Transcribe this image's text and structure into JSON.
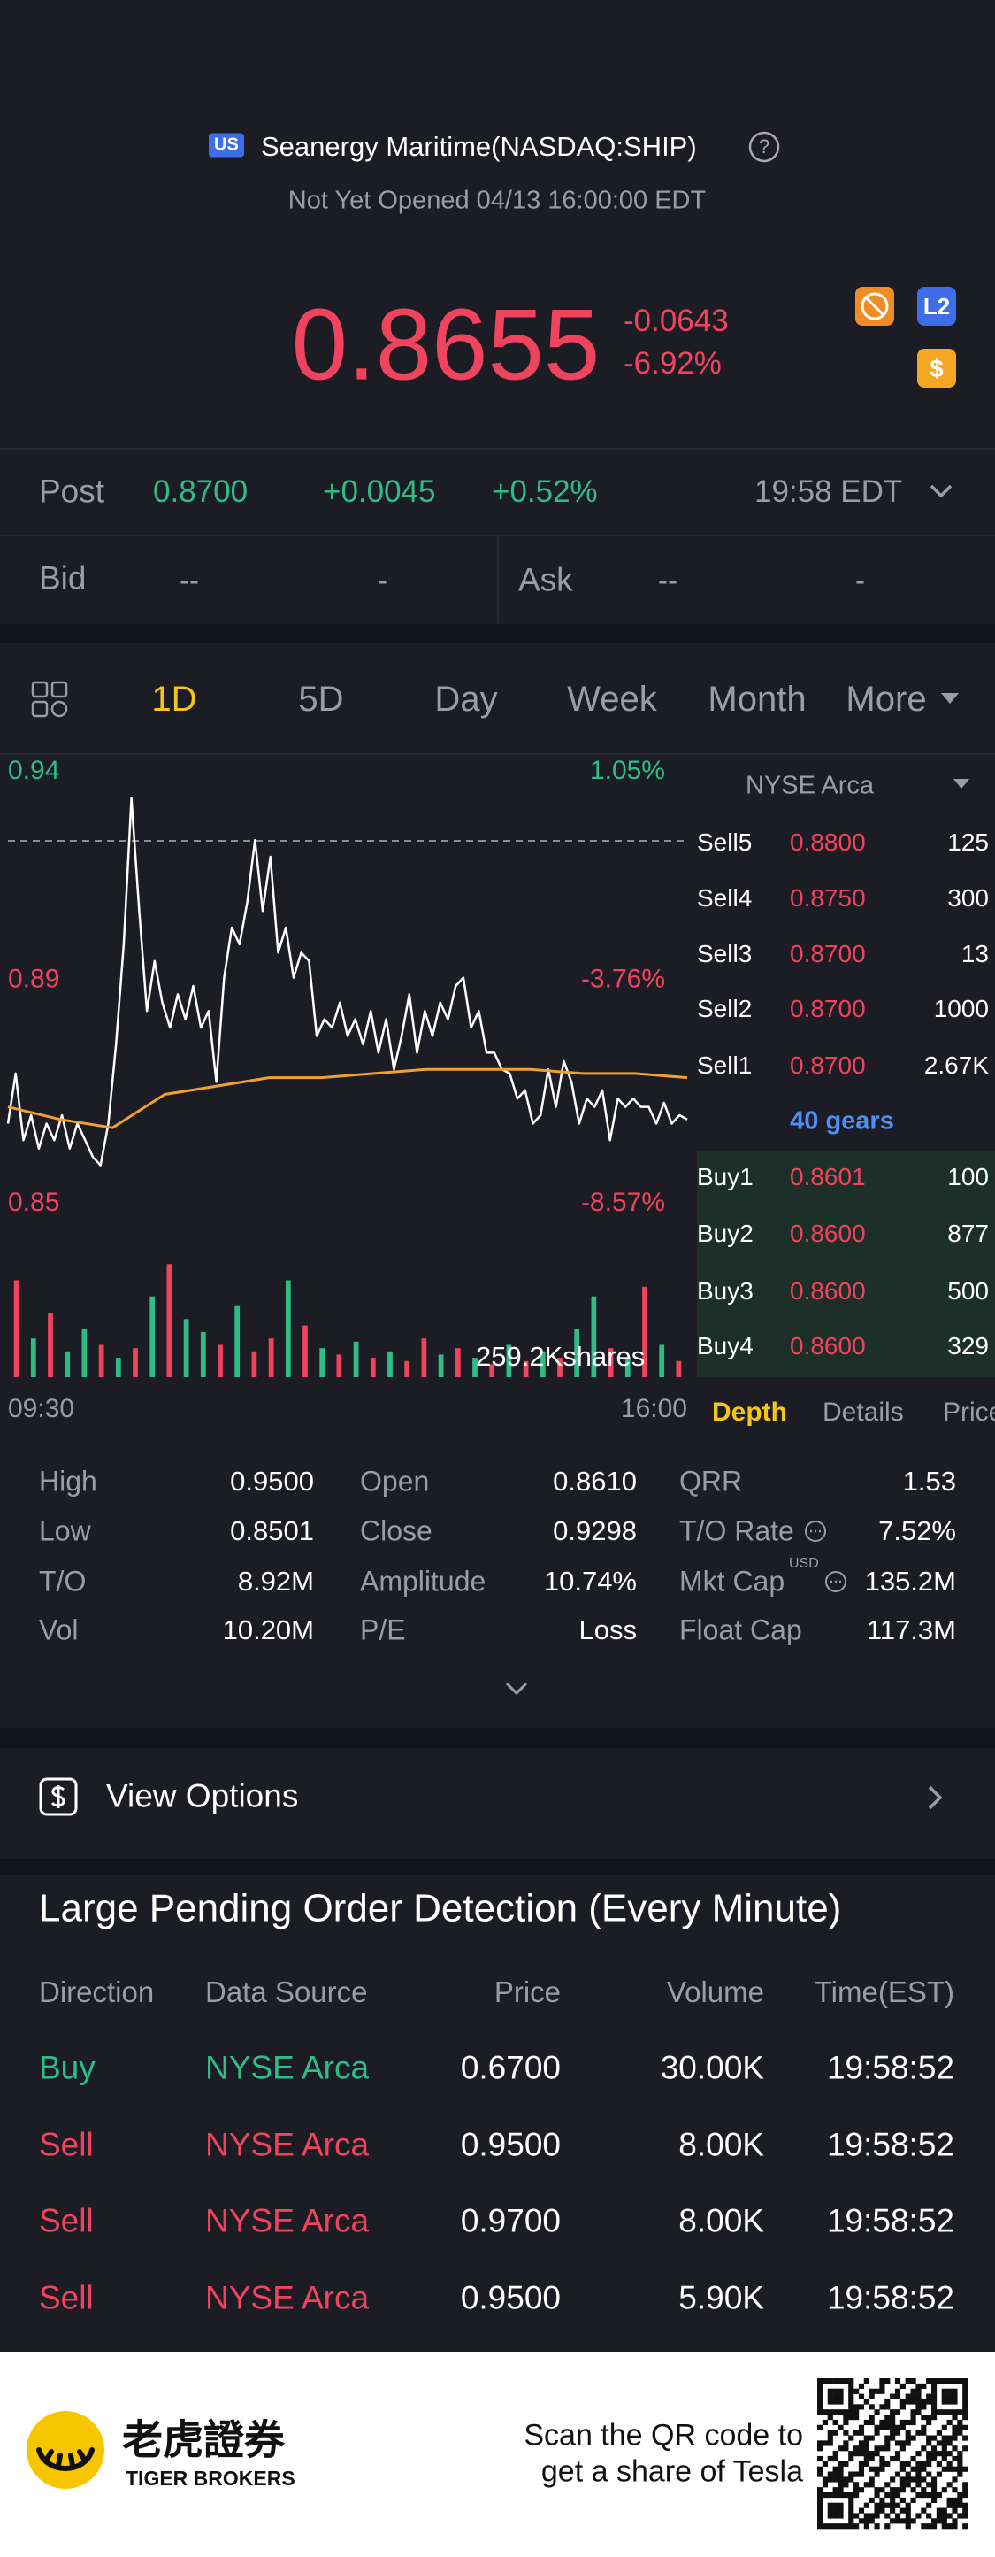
{
  "theme": {
    "up": "#2ebd85",
    "down": "#f0435e",
    "muted": "#9a9da8",
    "accent": "#f5c518",
    "link": "#4f8ef7"
  },
  "header": {
    "badge": "US",
    "title": "Seanergy Maritime(NASDAQ:SHIP)",
    "help": "?",
    "status": "Not Yet Opened 04/13 16:00:00 EDT"
  },
  "quote": {
    "price": "0.8655",
    "change": "-0.0643",
    "change_pct": "-6.92%",
    "badge_l2": "L2",
    "badge_dollar": "$"
  },
  "post": {
    "label": "Post",
    "price": "0.8700",
    "change": "+0.0045",
    "change_pct": "+0.52%",
    "time": "19:58 EDT"
  },
  "bid_ask": {
    "bid_label": "Bid",
    "bid_price": "--",
    "bid_size": "-",
    "ask_label": "Ask",
    "ask_price": "--",
    "ask_size": "-"
  },
  "tabs": {
    "items": [
      "1D",
      "5D",
      "Day",
      "Week",
      "Month",
      "More"
    ],
    "active": 0
  },
  "chart_data": {
    "type": "line",
    "series": [
      {
        "color": "#ffffff",
        "values": [
          0.862,
          0.874,
          0.858,
          0.864,
          0.856,
          0.862,
          0.858,
          0.864,
          0.856,
          0.862,
          0.858,
          0.854,
          0.852,
          0.862,
          0.881,
          0.905,
          0.94,
          0.913,
          0.889,
          0.901,
          0.891,
          0.885,
          0.893,
          0.887,
          0.895,
          0.885,
          0.889,
          0.872,
          0.897,
          0.909,
          0.905,
          0.915,
          0.93,
          0.913,
          0.926,
          0.903,
          0.909,
          0.897,
          0.903,
          0.901,
          0.883,
          0.887,
          0.885,
          0.891,
          0.883,
          0.887,
          0.881,
          0.889,
          0.879,
          0.887,
          0.875,
          0.883,
          0.893,
          0.879,
          0.889,
          0.883,
          0.891,
          0.887,
          0.895,
          0.897,
          0.885,
          0.889,
          0.879,
          0.879,
          0.875,
          0.874,
          0.868,
          0.87,
          0.862,
          0.864,
          0.875,
          0.866,
          0.877,
          0.872,
          0.862,
          0.868,
          0.866,
          0.87,
          0.858,
          0.868,
          0.866,
          0.868,
          0.866,
          0.866,
          0.862,
          0.867,
          0.862,
          0.864,
          0.863
        ]
      },
      {
        "color": "#f0a030",
        "values": [
          0.866,
          0.863,
          0.861,
          0.869,
          0.871,
          0.873,
          0.873,
          0.874,
          0.875,
          0.875,
          0.875,
          0.874,
          0.874,
          0.873
        ]
      }
    ],
    "ylim": [
      0.85,
      0.94
    ],
    "yticks": [
      0.94,
      0.89,
      0.85
    ],
    "pct_labels": [
      "1.05%",
      "-3.76%",
      "-8.57%"
    ],
    "prev_close": 0.9298,
    "x_labels": [
      "09:30",
      "16:00"
    ],
    "volume": {
      "label": "259.2Kshares",
      "ylim": [
        0,
        40
      ],
      "values": [
        30,
        12,
        20,
        8,
        15,
        10,
        6,
        9,
        25,
        35,
        18,
        14,
        10,
        22,
        8,
        12,
        30,
        16,
        9,
        7,
        11,
        6,
        8,
        5,
        12,
        7,
        9,
        6,
        4,
        10,
        5,
        8,
        6,
        15,
        25,
        9,
        6,
        28,
        10,
        5
      ],
      "colors": [
        "#f0435e",
        "#2ebd85",
        "#f0435e",
        "#2ebd85",
        "#2ebd85",
        "#f0435e",
        "#2ebd85",
        "#f0435e",
        "#2ebd85",
        "#f0435e",
        "#2ebd85",
        "#2ebd85",
        "#f0435e",
        "#2ebd85",
        "#f0435e",
        "#f0435e",
        "#2ebd85",
        "#f0435e",
        "#2ebd85",
        "#f0435e",
        "#2ebd85",
        "#f0435e",
        "#2ebd85",
        "#f0435e",
        "#f0435e",
        "#2ebd85",
        "#f0435e",
        "#2ebd85",
        "#f0435e",
        "#2ebd85",
        "#f0435e",
        "#2ebd85",
        "#f0435e",
        "#2ebd85",
        "#2ebd85",
        "#f0435e",
        "#2ebd85",
        "#f0435e",
        "#2ebd85",
        "#f0435e"
      ]
    }
  },
  "order_book": {
    "venue": "NYSE Arca",
    "asks": [
      [
        "Sell5",
        "0.8800",
        "125"
      ],
      [
        "Sell4",
        "0.8750",
        "300"
      ],
      [
        "Sell3",
        "0.8700",
        "13"
      ],
      [
        "Sell2",
        "0.8700",
        "1000"
      ],
      [
        "Sell1",
        "0.8700",
        "2.67K"
      ]
    ],
    "gears": "40 gears",
    "bids": [
      [
        "Buy1",
        "0.8601",
        "100"
      ],
      [
        "Buy2",
        "0.8600",
        "877"
      ],
      [
        "Buy3",
        "0.8600",
        "500"
      ],
      [
        "Buy4",
        "0.8600",
        "329"
      ]
    ],
    "tabs": [
      "Depth",
      "Details",
      "Price"
    ]
  },
  "stats": [
    [
      {
        "label": "High",
        "value": "0.9500"
      },
      {
        "label": "Low",
        "value": "0.8501"
      },
      {
        "label": "T/O",
        "value": "8.92M"
      },
      {
        "label": "Vol",
        "value": "10.20M"
      }
    ],
    [
      {
        "label": "Open",
        "value": "0.8610"
      },
      {
        "label": "Close",
        "value": "0.9298"
      },
      {
        "label": "Amplitude",
        "value": "10.74%"
      },
      {
        "label": "P/E",
        "value": "Loss"
      }
    ],
    [
      {
        "label": "QRR",
        "value": "1.53"
      },
      {
        "label": "T/O Rate",
        "value": "7.52%"
      },
      {
        "label": "Mkt Cap",
        "value": "135.2M",
        "unit": "USD"
      },
      {
        "label": "Float Cap",
        "value": "117.3M"
      }
    ]
  ],
  "view_options": "View Options",
  "pending": {
    "title": "Large Pending Order Detection (Every Minute)",
    "columns": [
      "Direction",
      "Data Source",
      "Price",
      "Volume",
      "Time(EST)"
    ],
    "rows": [
      {
        "color": "#2ebd85",
        "cells": [
          "Buy",
          "NYSE Arca",
          "0.6700",
          "30.00K",
          "19:58:52"
        ]
      },
      {
        "color": "#f0435e",
        "cells": [
          "Sell",
          "NYSE Arca",
          "0.9500",
          "8.00K",
          "19:58:52"
        ]
      },
      {
        "color": "#f0435e",
        "cells": [
          "Sell",
          "NYSE Arca",
          "0.9700",
          "8.00K",
          "19:58:52"
        ]
      },
      {
        "color": "#f0435e",
        "cells": [
          "Sell",
          "NYSE Arca",
          "0.9500",
          "5.90K",
          "19:58:52"
        ]
      }
    ]
  },
  "footer": {
    "brand_cn": "老虎證券",
    "brand_en": "TIGER BROKERS",
    "cta": [
      "Scan the QR code to",
      "get a share of Tesla"
    ]
  }
}
